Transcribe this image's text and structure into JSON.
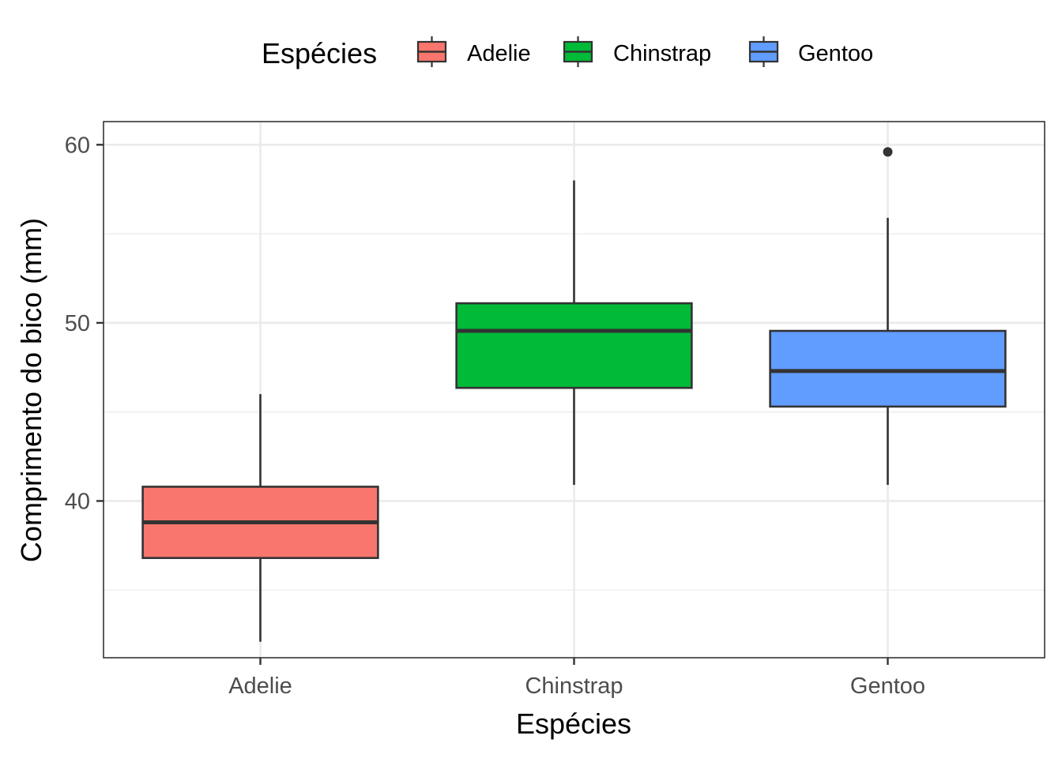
{
  "chart_data": {
    "type": "boxplot",
    "xlabel": "Espécies",
    "ylabel": "Comprimento do bico (mm)",
    "ylim": [
      31.2,
      61.3
    ],
    "y_ticks": [
      40,
      50,
      60
    ],
    "grid": true,
    "legend": {
      "title": "Espécies",
      "position": "top",
      "items": [
        {
          "label": "Adelie",
          "color": "#F8766D"
        },
        {
          "label": "Chinstrap",
          "color": "#00BA38"
        },
        {
          "label": "Gentoo",
          "color": "#619CFF"
        }
      ]
    },
    "categories": [
      "Adelie",
      "Chinstrap",
      "Gentoo"
    ],
    "series": [
      {
        "category": "Adelie",
        "color": "#F8766D",
        "min": 32.1,
        "q1": 36.8,
        "median": 38.8,
        "q3": 40.8,
        "max": 46.0,
        "outliers": []
      },
      {
        "category": "Chinstrap",
        "color": "#00BA38",
        "min": 40.9,
        "q1": 46.35,
        "median": 49.55,
        "q3": 51.1,
        "max": 58.0,
        "outliers": []
      },
      {
        "category": "Gentoo",
        "color": "#619CFF",
        "min": 40.9,
        "q1": 45.3,
        "median": 47.3,
        "q3": 49.55,
        "max": 55.9,
        "outliers": [
          59.6
        ]
      }
    ]
  }
}
